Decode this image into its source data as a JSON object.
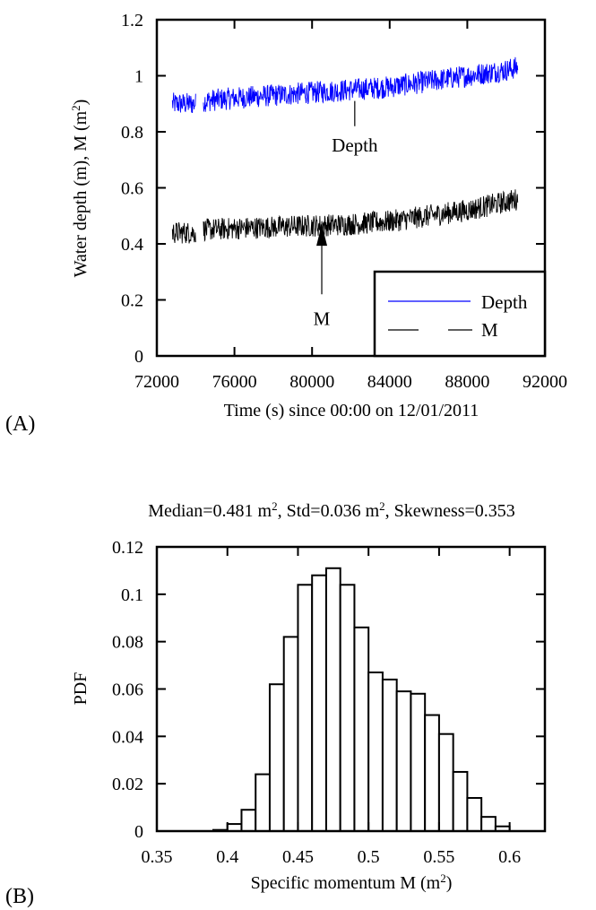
{
  "chart_data": [
    {
      "panel": "(A)",
      "type": "line",
      "xlabel": "Time (s) since 00:00 on 12/01/2011",
      "ylabel_main": "Water depth (m), M (m",
      "ylabel_sup": "2",
      "ylabel_close": ")",
      "xlim": [
        72000,
        92000
      ],
      "ylim": [
        0,
        1.2
      ],
      "xticks": [
        "72000",
        "76000",
        "80000",
        "84000",
        "88000",
        "92000"
      ],
      "xtick_values": [
        72000,
        76000,
        80000,
        84000,
        88000,
        92000
      ],
      "yticks": [
        "0",
        "0.2",
        "0.4",
        "0.6",
        "0.8",
        "1",
        "1.2"
      ],
      "ytick_values": [
        0,
        0.2,
        0.4,
        0.6,
        0.8,
        1.0,
        1.2
      ],
      "legend_position": "bottom-right",
      "series": [
        {
          "name": "Depth",
          "color": "#0000ff",
          "segments": [
            {
              "x": [
                72800,
                73200,
                73600,
                74000
              ],
              "y": [
                0.9,
                0.9,
                0.9,
                0.9
              ]
            },
            {
              "x": [
                74400,
                76000,
                78000,
                80000,
                82000,
                84000,
                86000,
                88000,
                90000,
                90600
              ],
              "y": [
                0.91,
                0.92,
                0.93,
                0.94,
                0.95,
                0.96,
                0.98,
                1.0,
                1.02,
                1.03
              ]
            }
          ],
          "noise_amplitude": 0.04
        },
        {
          "name": "M",
          "color": "#000000",
          "segments": [
            {
              "x": [
                72800,
                73200,
                73600,
                74000
              ],
              "y": [
                0.44,
                0.44,
                0.44,
                0.44
              ]
            },
            {
              "x": [
                74400,
                76000,
                78000,
                80000,
                82000,
                84000,
                86000,
                88000,
                90000,
                90600
              ],
              "y": [
                0.45,
                0.455,
                0.46,
                0.465,
                0.47,
                0.48,
                0.5,
                0.52,
                0.55,
                0.56
              ]
            }
          ],
          "noise_amplitude": 0.04
        }
      ],
      "annotations": [
        {
          "text": "Depth",
          "x": 82200,
          "y": 0.73,
          "arrow_from_y": 0.82,
          "arrow_to_y": 0.91,
          "arrowhead": false
        },
        {
          "text": "M",
          "x": 80500,
          "y": 0.11,
          "arrow_from_y": 0.22,
          "arrow_to_y": 0.47,
          "arrowhead": true
        }
      ]
    },
    {
      "panel": "(B)",
      "type": "bar",
      "title_parts": [
        "Median=0.481 m",
        "2",
        ", Std=0.036 m",
        "2",
        ", Skewness=0.353"
      ],
      "xlabel_main": "Specific momentum M (m",
      "xlabel_sup": "2",
      "xlabel_close": ")",
      "ylabel": "PDF",
      "xlim": [
        0.35,
        0.625
      ],
      "ylim": [
        0,
        0.12
      ],
      "xticks": [
        "0.35",
        "0.4",
        "0.45",
        "0.5",
        "0.55",
        "0.6"
      ],
      "xtick_values": [
        0.35,
        0.4,
        0.45,
        0.5,
        0.55,
        0.6
      ],
      "yticks": [
        "0",
        "0.02",
        "0.04",
        "0.06",
        "0.08",
        "0.1",
        "0.12"
      ],
      "ytick_values": [
        0,
        0.02,
        0.04,
        0.06,
        0.08,
        0.1,
        0.12
      ],
      "bin_width": 0.01,
      "bin_starts": [
        0.39,
        0.4,
        0.41,
        0.42,
        0.43,
        0.44,
        0.45,
        0.46,
        0.47,
        0.48,
        0.49,
        0.5,
        0.51,
        0.52,
        0.53,
        0.54,
        0.55,
        0.56,
        0.57,
        0.58,
        0.59
      ],
      "values": [
        0.0005,
        0.003,
        0.009,
        0.024,
        0.062,
        0.082,
        0.104,
        0.108,
        0.111,
        0.104,
        0.086,
        0.067,
        0.064,
        0.059,
        0.058,
        0.049,
        0.041,
        0.025,
        0.014,
        0.006,
        0.002
      ]
    }
  ],
  "labels": {
    "panel_a": "(A)",
    "panel_b": "(B)"
  }
}
